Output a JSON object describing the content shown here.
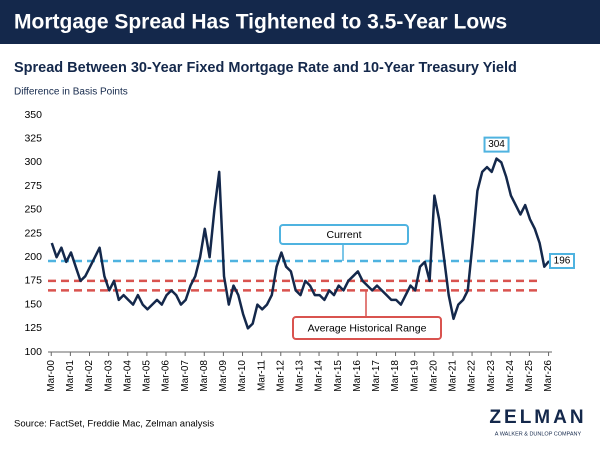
{
  "chart_data": {
    "type": "line",
    "title": "Mortgage Spread Has Tightened to 3.5-Year Lows",
    "subtitle": "Spread Between 30-Year Fixed Mortgage Rate and 10-Year Treasury Yield",
    "y_label": "Difference in Basis Points",
    "source": "Source: FactSet, Freddie Mac, Zelman analysis",
    "logo": "ZELMAN",
    "logo_tagline": "A WALKER & DUNLOP COMPANY",
    "x": [
      2000.2,
      2000.45,
      2000.7,
      2000.95,
      2001.2,
      2001.45,
      2001.7,
      2001.95,
      2002.2,
      2002.45,
      2002.7,
      2002.95,
      2003.2,
      2003.45,
      2003.7,
      2003.95,
      2004.2,
      2004.45,
      2004.7,
      2004.95,
      2005.2,
      2005.45,
      2005.7,
      2005.95,
      2006.2,
      2006.45,
      2006.7,
      2006.95,
      2007.2,
      2007.45,
      2007.7,
      2007.95,
      2008.2,
      2008.45,
      2008.7,
      2008.95,
      2009.2,
      2009.45,
      2009.7,
      2009.95,
      2010.2,
      2010.45,
      2010.7,
      2010.95,
      2011.2,
      2011.45,
      2011.7,
      2011.95,
      2012.2,
      2012.45,
      2012.7,
      2012.95,
      2013.2,
      2013.45,
      2013.7,
      2013.95,
      2014.2,
      2014.45,
      2014.7,
      2014.95,
      2015.2,
      2015.45,
      2015.7,
      2015.95,
      2016.2,
      2016.45,
      2016.7,
      2016.95,
      2017.2,
      2017.45,
      2017.7,
      2017.95,
      2018.2,
      2018.45,
      2018.7,
      2018.95,
      2019.2,
      2019.45,
      2019.7,
      2019.95,
      2020.2,
      2020.45,
      2020.7,
      2020.95,
      2021.2,
      2021.45,
      2021.7,
      2021.95,
      2022.2,
      2022.45,
      2022.7,
      2022.95,
      2023.2,
      2023.45,
      2023.7,
      2023.95,
      2024.2,
      2024.45,
      2024.7,
      2024.95,
      2025.2,
      2025.45,
      2025.7,
      2025.95,
      2026.2
    ],
    "series": [
      {
        "name": "Spread",
        "color": "#14284b",
        "values": [
          215,
          200,
          210,
          195,
          205,
          190,
          175,
          180,
          190,
          200,
          210,
          180,
          165,
          175,
          155,
          160,
          155,
          150,
          160,
          150,
          145,
          150,
          155,
          150,
          160,
          165,
          160,
          150,
          155,
          170,
          180,
          200,
          230,
          200,
          250,
          290,
          180,
          150,
          170,
          160,
          140,
          125,
          130,
          150,
          145,
          150,
          160,
          190,
          205,
          190,
          185,
          165,
          160,
          175,
          170,
          160,
          160,
          155,
          165,
          160,
          170,
          165,
          175,
          180,
          185,
          175,
          170,
          165,
          170,
          165,
          160,
          155,
          155,
          150,
          160,
          170,
          165,
          190,
          195,
          175,
          265,
          240,
          200,
          160,
          135,
          150,
          155,
          165,
          215,
          270,
          290,
          295,
          290,
          304,
          300,
          285,
          265,
          255,
          245,
          255,
          240,
          230,
          215,
          190,
          196
        ]
      }
    ],
    "xlim": [
      2000.0,
      2026.35
    ],
    "xticks": [
      {
        "value": 2000.17,
        "label": "Mar-00"
      },
      {
        "value": 2001.17,
        "label": "Mar-01"
      },
      {
        "value": 2002.17,
        "label": "Mar-02"
      },
      {
        "value": 2003.17,
        "label": "Mar-03"
      },
      {
        "value": 2004.17,
        "label": "Mar-04"
      },
      {
        "value": 2005.17,
        "label": "Mar-05"
      },
      {
        "value": 2006.17,
        "label": "Mar-06"
      },
      {
        "value": 2007.17,
        "label": "Mar-07"
      },
      {
        "value": 2008.17,
        "label": "Mar-08"
      },
      {
        "value": 2009.17,
        "label": "Mar-09"
      },
      {
        "value": 2010.17,
        "label": "Mar-10"
      },
      {
        "value": 2011.17,
        "label": "Mar-11"
      },
      {
        "value": 2012.17,
        "label": "Mar-12"
      },
      {
        "value": 2013.17,
        "label": "Mar-13"
      },
      {
        "value": 2014.17,
        "label": "Mar-14"
      },
      {
        "value": 2015.17,
        "label": "Mar-15"
      },
      {
        "value": 2016.17,
        "label": "Mar-16"
      },
      {
        "value": 2017.17,
        "label": "Mar-17"
      },
      {
        "value": 2018.17,
        "label": "Mar-18"
      },
      {
        "value": 2019.17,
        "label": "Mar-19"
      },
      {
        "value": 2020.17,
        "label": "Mar-20"
      },
      {
        "value": 2021.17,
        "label": "Mar-21"
      },
      {
        "value": 2022.17,
        "label": "Mar-22"
      },
      {
        "value": 2023.17,
        "label": "Mar-23"
      },
      {
        "value": 2024.17,
        "label": "Mar-24"
      },
      {
        "value": 2025.17,
        "label": "Mar-25"
      },
      {
        "value": 2026.17,
        "label": "Mar-26"
      }
    ],
    "ylim": [
      100,
      350
    ],
    "yticks": [
      100,
      125,
      150,
      175,
      200,
      225,
      250,
      275,
      300,
      325,
      350
    ],
    "peak_label": {
      "value": 304,
      "label": "304"
    },
    "current_label": {
      "value": 196,
      "label": "196"
    },
    "current_line": {
      "name": "Current",
      "value": 196,
      "color": "#4fb3e0"
    },
    "range_lines": {
      "name": "Average Historical Range",
      "values": [
        175,
        165
      ],
      "color": "#d9534f"
    }
  }
}
